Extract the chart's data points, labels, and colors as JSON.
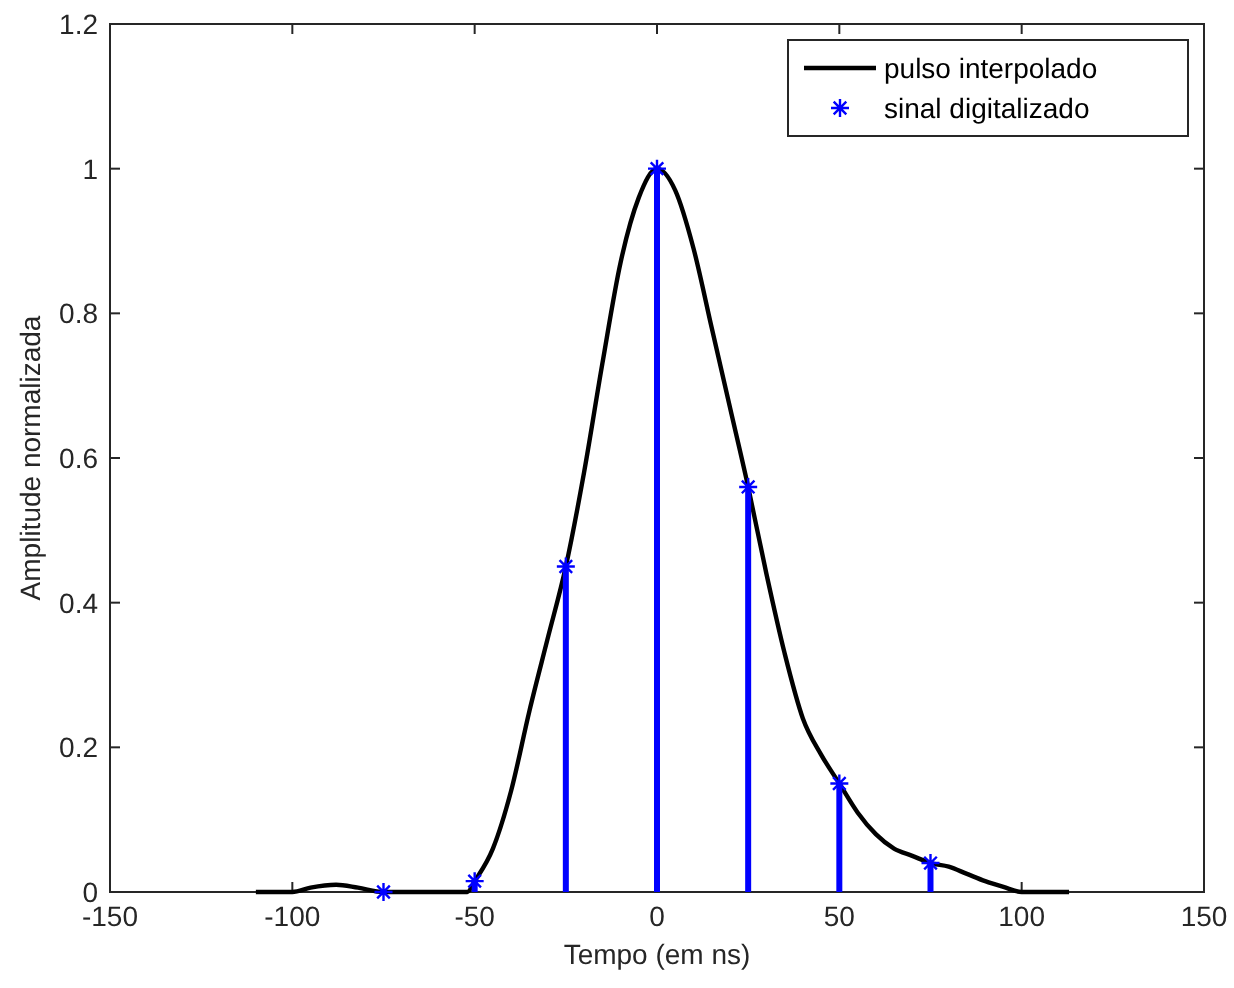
{
  "chart_data": {
    "type": "line",
    "xlabel": "Tempo (em ns)",
    "ylabel": "Amplitude normalizada",
    "xlim": [
      -150,
      150
    ],
    "ylim": [
      0,
      1.2
    ],
    "xticks": [
      -150,
      -100,
      -50,
      0,
      50,
      100,
      150
    ],
    "yticks": [
      0,
      0.2,
      0.4,
      0.6,
      0.8,
      1,
      1.2
    ],
    "grid": false,
    "legend": "top right",
    "series": [
      {
        "name": "pulso interpolado",
        "color": "#000000",
        "marker": "none",
        "line_style": "solid",
        "x": [
          -110,
          -100,
          -95,
          -88,
          -82,
          -75,
          -60,
          -52,
          -50,
          -45,
          -40,
          -35,
          -30,
          -25,
          -20,
          -15,
          -10,
          -5,
          0,
          5,
          10,
          15,
          20,
          25,
          30,
          35,
          40,
          45,
          50,
          55,
          60,
          65,
          70,
          75,
          80,
          85,
          90,
          95,
          100,
          113
        ],
        "values": [
          0,
          0,
          0.006,
          0.01,
          0.006,
          0,
          0,
          0,
          0.015,
          0.06,
          0.14,
          0.25,
          0.35,
          0.45,
          0.58,
          0.73,
          0.87,
          0.96,
          1,
          0.97,
          0.89,
          0.78,
          0.67,
          0.56,
          0.44,
          0.33,
          0.24,
          0.19,
          0.15,
          0.11,
          0.08,
          0.06,
          0.05,
          0.04,
          0.035,
          0.025,
          0.015,
          0.007,
          0,
          0
        ]
      },
      {
        "name": "sinal digitalizado",
        "type": "lollipop",
        "color": "#0000ff",
        "marker": "cross",
        "x": [
          -75,
          -50,
          -25,
          0,
          25,
          50,
          75
        ],
        "values": [
          0,
          0.015,
          0.45,
          1,
          0.56,
          0.15,
          0.04
        ]
      }
    ]
  }
}
